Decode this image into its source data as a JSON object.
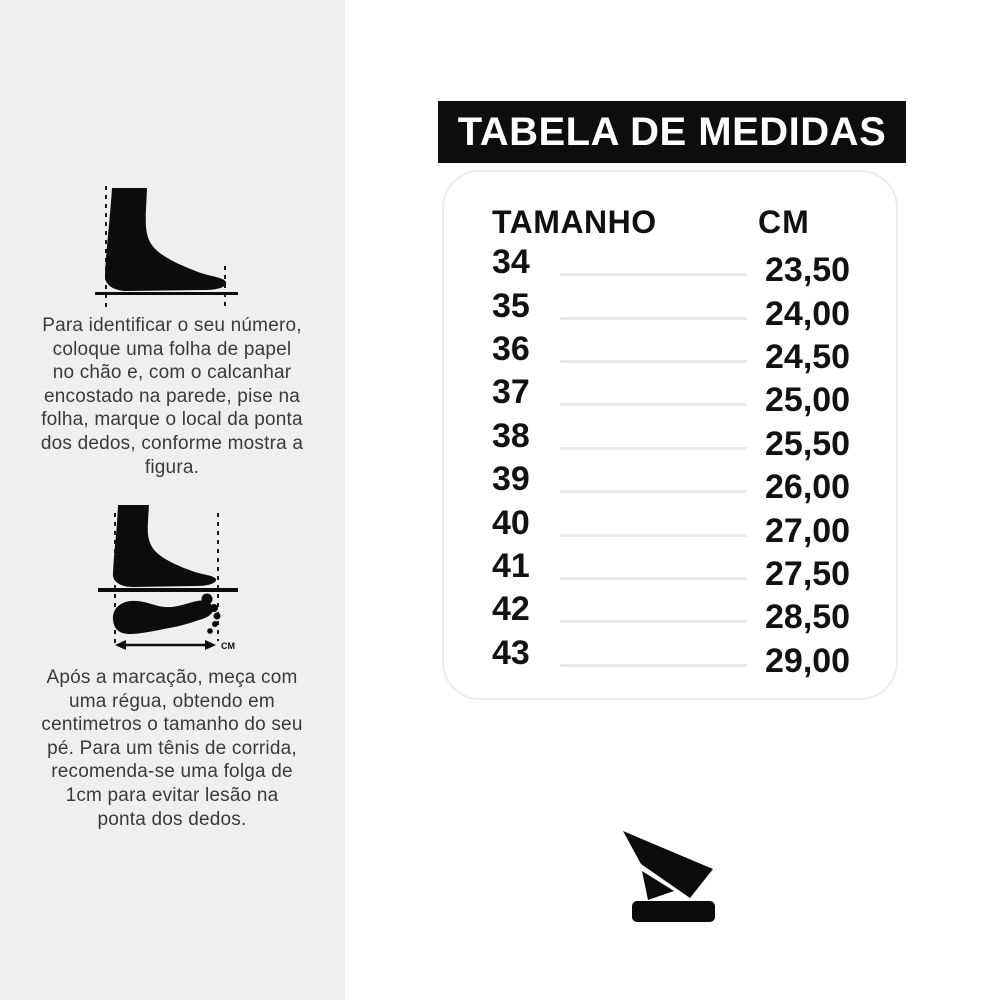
{
  "left_panel": {
    "instruction_1": "Para identificar o seu número,\ncoloque uma folha de papel\nno chão e, com o calcanhar\nencostado na parede, pise na\nfolha, marque o local da ponta\ndos dedos, conforme mostra a\nfigura.",
    "instruction_2": "Após a marcação, meça com\numa régua, obtendo em\ncentimetros o tamanho do seu\npé. Para um tênis de corrida,\nrecomenda-se uma folga de\n1cm para evitar lesão na\nponta dos dedos.",
    "diagram_unit_label": "CM"
  },
  "size_chart": {
    "title": "TABELA DE MEDIDAS",
    "columns": {
      "size": "TAMANHO",
      "cm": "CM"
    },
    "rows": [
      {
        "size": "34",
        "cm": "23,50"
      },
      {
        "size": "35",
        "cm": "24,00"
      },
      {
        "size": "36",
        "cm": "24,50"
      },
      {
        "size": "37",
        "cm": "25,00"
      },
      {
        "size": "38",
        "cm": "25,50"
      },
      {
        "size": "39",
        "cm": "26,00"
      },
      {
        "size": "40",
        "cm": "27,00"
      },
      {
        "size": "41",
        "cm": "27,50"
      },
      {
        "size": "42",
        "cm": "28,50"
      },
      {
        "size": "43",
        "cm": "29,00"
      }
    ]
  },
  "colors": {
    "panel_bg": "#efefef",
    "page_bg": "#ffffff",
    "ink": "#0d0d0d",
    "text": "#3a3a3a",
    "line": "#e9e9e9",
    "card_border": "#ececec"
  },
  "chart_data": {
    "type": "table",
    "title": "TABELA DE MEDIDAS",
    "columns": [
      "TAMANHO",
      "CM"
    ],
    "rows": [
      [
        "34",
        "23,50"
      ],
      [
        "35",
        "24,00"
      ],
      [
        "36",
        "24,50"
      ],
      [
        "37",
        "25,00"
      ],
      [
        "38",
        "25,50"
      ],
      [
        "39",
        "26,00"
      ],
      [
        "40",
        "27,00"
      ],
      [
        "41",
        "27,50"
      ],
      [
        "42",
        "28,50"
      ],
      [
        "43",
        "29,00"
      ]
    ]
  }
}
